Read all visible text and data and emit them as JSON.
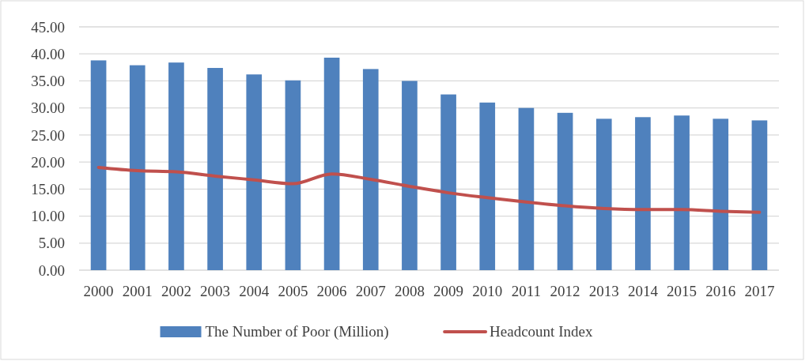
{
  "chart_data": {
    "type": "bar",
    "categories": [
      "2000",
      "2001",
      "2002",
      "2003",
      "2004",
      "2005",
      "2006",
      "2007",
      "2008",
      "2009",
      "2010",
      "2011",
      "2012",
      "2013",
      "2014",
      "2015",
      "2016",
      "2017"
    ],
    "series": [
      {
        "name": "The Number of Poor (Million)",
        "color": "#4f81bd",
        "values": [
          38.8,
          37.9,
          38.4,
          37.4,
          36.2,
          35.1,
          39.3,
          37.2,
          35.0,
          32.5,
          31.0,
          30.0,
          29.1,
          28.0,
          28.3,
          28.6,
          28.0,
          27.7
        ]
      },
      {
        "name": "Headcount Index",
        "type": "line",
        "color": "#c0504d",
        "values": [
          19.0,
          18.4,
          18.2,
          17.4,
          16.7,
          16.0,
          17.8,
          16.8,
          15.5,
          14.3,
          13.4,
          12.6,
          11.9,
          11.4,
          11.2,
          11.2,
          10.9,
          10.7
        ]
      }
    ],
    "ylim": [
      0,
      45
    ],
    "yticks": [
      {
        "value": 0,
        "label": "0.00"
      },
      {
        "value": 5,
        "label": "5.00"
      },
      {
        "value": 10,
        "label": "10.00"
      },
      {
        "value": 15,
        "label": "15.00"
      },
      {
        "value": 20,
        "label": "20.00"
      },
      {
        "value": 25,
        "label": "25.00"
      },
      {
        "value": 30,
        "label": "30.00"
      },
      {
        "value": 35,
        "label": "35.00"
      },
      {
        "value": 40,
        "label": "40.00"
      },
      {
        "value": 45,
        "label": "45.00"
      }
    ],
    "grid": "y",
    "legend": "bottom"
  }
}
